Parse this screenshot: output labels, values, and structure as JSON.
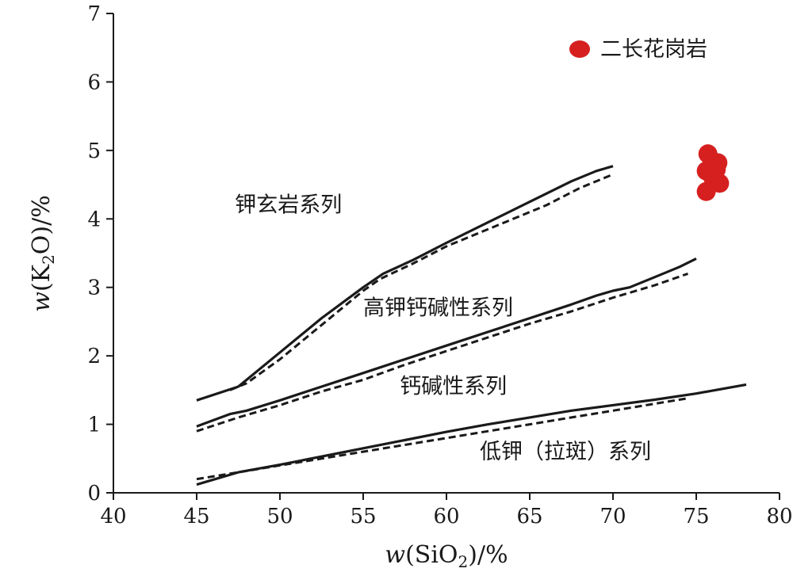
{
  "chart_data": {
    "type": "line",
    "xlim": [
      40,
      80
    ],
    "ylim": [
      0,
      7
    ],
    "xticks": [
      "40",
      "45",
      "50",
      "55",
      "60",
      "65",
      "70",
      "75",
      "80"
    ],
    "yticks": [
      "0",
      "1",
      "2",
      "3",
      "4",
      "5",
      "6",
      "7"
    ],
    "xlabel": {
      "prefix": "w",
      "main": "(SiO",
      "sub": "2",
      "suffix": ")/%"
    },
    "ylabel": {
      "prefix": "w",
      "main": "(K",
      "sub": "2",
      "suffix": "O)/%"
    },
    "grid": false,
    "boundaries": [
      {
        "style": "solid",
        "x": [
          45,
          47.5,
          50,
          52.5,
          55,
          56.2,
          58,
          60,
          62.5,
          65,
          67.5,
          69,
          70
        ],
        "y": [
          1.35,
          1.55,
          2.05,
          2.55,
          3.0,
          3.2,
          3.4,
          3.65,
          3.95,
          4.25,
          4.55,
          4.7,
          4.77
        ]
      },
      {
        "style": "dashed",
        "x": [
          47,
          48,
          50,
          52,
          54,
          55,
          56,
          58,
          60,
          62,
          64,
          66,
          68,
          70
        ],
        "y": [
          1.5,
          1.6,
          1.95,
          2.35,
          2.75,
          2.95,
          3.12,
          3.35,
          3.6,
          3.8,
          4.0,
          4.2,
          4.45,
          4.65
        ]
      },
      {
        "style": "solid",
        "x": [
          45,
          47,
          48,
          50,
          52.5,
          55,
          57.5,
          60,
          62.5,
          65,
          67.5,
          69,
          70,
          71,
          72.5,
          74,
          75
        ],
        "y": [
          0.97,
          1.15,
          1.2,
          1.35,
          1.55,
          1.75,
          1.95,
          2.15,
          2.35,
          2.55,
          2.75,
          2.88,
          2.95,
          3.0,
          3.15,
          3.3,
          3.42
        ]
      },
      {
        "style": "dashed",
        "x": [
          45,
          47.5,
          50,
          52.5,
          55,
          57.5,
          60,
          62.5,
          65,
          67.5,
          70,
          72.5,
          74.5
        ],
        "y": [
          0.9,
          1.1,
          1.28,
          1.48,
          1.65,
          1.87,
          2.07,
          2.27,
          2.47,
          2.65,
          2.85,
          3.03,
          3.2
        ]
      },
      {
        "style": "solid",
        "x": [
          45,
          47.5,
          50,
          52.5,
          55,
          57.5,
          60,
          62.5,
          65,
          67.5,
          70,
          72.5,
          75,
          78
        ],
        "y": [
          0.12,
          0.3,
          0.41,
          0.53,
          0.65,
          0.77,
          0.89,
          1.0,
          1.1,
          1.2,
          1.28,
          1.36,
          1.45,
          1.58
        ]
      },
      {
        "style": "dashed",
        "x": [
          45,
          47.5,
          50,
          52.5,
          55,
          57.5,
          60,
          62.5,
          65,
          67.5,
          70,
          72.5,
          74.5
        ],
        "y": [
          0.2,
          0.3,
          0.4,
          0.5,
          0.6,
          0.7,
          0.8,
          0.9,
          1.0,
          1.1,
          1.2,
          1.3,
          1.38
        ]
      }
    ],
    "region_labels": [
      {
        "text": "钾玄岩系列",
        "x": 47.3,
        "y": 4.1
      },
      {
        "text": "高钾钙碱性系列",
        "x": 55.0,
        "y": 2.6
      },
      {
        "text": "钙碱性系列",
        "x": 57.2,
        "y": 1.45
      },
      {
        "text": "低钾（拉斑）系列",
        "x": 62.0,
        "y": 0.5
      }
    ],
    "series": [
      {
        "name": "二长花岗岩",
        "type": "scatter",
        "color": "#d62020",
        "x": [
          75.7,
          75.9,
          76.3,
          75.6,
          76.2,
          76.0,
          75.6,
          76.4
        ],
        "y": [
          4.95,
          4.78,
          4.82,
          4.7,
          4.72,
          4.6,
          4.4,
          4.52
        ]
      }
    ],
    "legend": {
      "placement": "top-right",
      "label": "二长花岗岩"
    }
  }
}
